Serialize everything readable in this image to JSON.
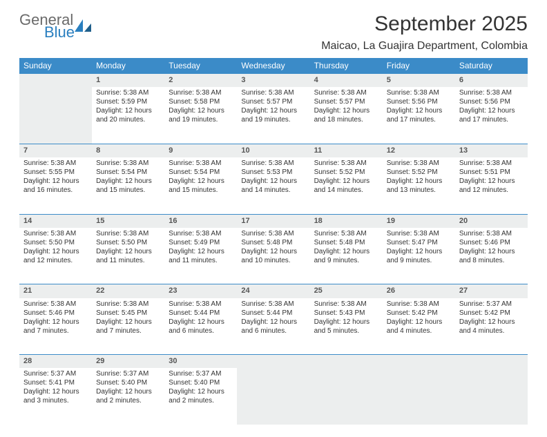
{
  "brand": {
    "general": "General",
    "blue": "Blue"
  },
  "title": "September 2025",
  "location": "Maicao, La Guajira Department, Colombia",
  "colors": {
    "header_bg": "#3b8bc8",
    "header_fg": "#ffffff",
    "daynum_bg": "#eceeee",
    "rule": "#3b8bc8",
    "text": "#333333",
    "logo_gray": "#6a6a6a",
    "logo_blue": "#2a7fbf"
  },
  "weekdays": [
    "Sunday",
    "Monday",
    "Tuesday",
    "Wednesday",
    "Thursday",
    "Friday",
    "Saturday"
  ],
  "weeks": [
    [
      null,
      {
        "n": "1",
        "sr": "Sunrise: 5:38 AM",
        "ss": "Sunset: 5:59 PM",
        "d1": "Daylight: 12 hours",
        "d2": "and 20 minutes."
      },
      {
        "n": "2",
        "sr": "Sunrise: 5:38 AM",
        "ss": "Sunset: 5:58 PM",
        "d1": "Daylight: 12 hours",
        "d2": "and 19 minutes."
      },
      {
        "n": "3",
        "sr": "Sunrise: 5:38 AM",
        "ss": "Sunset: 5:57 PM",
        "d1": "Daylight: 12 hours",
        "d2": "and 19 minutes."
      },
      {
        "n": "4",
        "sr": "Sunrise: 5:38 AM",
        "ss": "Sunset: 5:57 PM",
        "d1": "Daylight: 12 hours",
        "d2": "and 18 minutes."
      },
      {
        "n": "5",
        "sr": "Sunrise: 5:38 AM",
        "ss": "Sunset: 5:56 PM",
        "d1": "Daylight: 12 hours",
        "d2": "and 17 minutes."
      },
      {
        "n": "6",
        "sr": "Sunrise: 5:38 AM",
        "ss": "Sunset: 5:56 PM",
        "d1": "Daylight: 12 hours",
        "d2": "and 17 minutes."
      }
    ],
    [
      {
        "n": "7",
        "sr": "Sunrise: 5:38 AM",
        "ss": "Sunset: 5:55 PM",
        "d1": "Daylight: 12 hours",
        "d2": "and 16 minutes."
      },
      {
        "n": "8",
        "sr": "Sunrise: 5:38 AM",
        "ss": "Sunset: 5:54 PM",
        "d1": "Daylight: 12 hours",
        "d2": "and 15 minutes."
      },
      {
        "n": "9",
        "sr": "Sunrise: 5:38 AM",
        "ss": "Sunset: 5:54 PM",
        "d1": "Daylight: 12 hours",
        "d2": "and 15 minutes."
      },
      {
        "n": "10",
        "sr": "Sunrise: 5:38 AM",
        "ss": "Sunset: 5:53 PM",
        "d1": "Daylight: 12 hours",
        "d2": "and 14 minutes."
      },
      {
        "n": "11",
        "sr": "Sunrise: 5:38 AM",
        "ss": "Sunset: 5:52 PM",
        "d1": "Daylight: 12 hours",
        "d2": "and 14 minutes."
      },
      {
        "n": "12",
        "sr": "Sunrise: 5:38 AM",
        "ss": "Sunset: 5:52 PM",
        "d1": "Daylight: 12 hours",
        "d2": "and 13 minutes."
      },
      {
        "n": "13",
        "sr": "Sunrise: 5:38 AM",
        "ss": "Sunset: 5:51 PM",
        "d1": "Daylight: 12 hours",
        "d2": "and 12 minutes."
      }
    ],
    [
      {
        "n": "14",
        "sr": "Sunrise: 5:38 AM",
        "ss": "Sunset: 5:50 PM",
        "d1": "Daylight: 12 hours",
        "d2": "and 12 minutes."
      },
      {
        "n": "15",
        "sr": "Sunrise: 5:38 AM",
        "ss": "Sunset: 5:50 PM",
        "d1": "Daylight: 12 hours",
        "d2": "and 11 minutes."
      },
      {
        "n": "16",
        "sr": "Sunrise: 5:38 AM",
        "ss": "Sunset: 5:49 PM",
        "d1": "Daylight: 12 hours",
        "d2": "and 11 minutes."
      },
      {
        "n": "17",
        "sr": "Sunrise: 5:38 AM",
        "ss": "Sunset: 5:48 PM",
        "d1": "Daylight: 12 hours",
        "d2": "and 10 minutes."
      },
      {
        "n": "18",
        "sr": "Sunrise: 5:38 AM",
        "ss": "Sunset: 5:48 PM",
        "d1": "Daylight: 12 hours",
        "d2": "and 9 minutes."
      },
      {
        "n": "19",
        "sr": "Sunrise: 5:38 AM",
        "ss": "Sunset: 5:47 PM",
        "d1": "Daylight: 12 hours",
        "d2": "and 9 minutes."
      },
      {
        "n": "20",
        "sr": "Sunrise: 5:38 AM",
        "ss": "Sunset: 5:46 PM",
        "d1": "Daylight: 12 hours",
        "d2": "and 8 minutes."
      }
    ],
    [
      {
        "n": "21",
        "sr": "Sunrise: 5:38 AM",
        "ss": "Sunset: 5:46 PM",
        "d1": "Daylight: 12 hours",
        "d2": "and 7 minutes."
      },
      {
        "n": "22",
        "sr": "Sunrise: 5:38 AM",
        "ss": "Sunset: 5:45 PM",
        "d1": "Daylight: 12 hours",
        "d2": "and 7 minutes."
      },
      {
        "n": "23",
        "sr": "Sunrise: 5:38 AM",
        "ss": "Sunset: 5:44 PM",
        "d1": "Daylight: 12 hours",
        "d2": "and 6 minutes."
      },
      {
        "n": "24",
        "sr": "Sunrise: 5:38 AM",
        "ss": "Sunset: 5:44 PM",
        "d1": "Daylight: 12 hours",
        "d2": "and 6 minutes."
      },
      {
        "n": "25",
        "sr": "Sunrise: 5:38 AM",
        "ss": "Sunset: 5:43 PM",
        "d1": "Daylight: 12 hours",
        "d2": "and 5 minutes."
      },
      {
        "n": "26",
        "sr": "Sunrise: 5:38 AM",
        "ss": "Sunset: 5:42 PM",
        "d1": "Daylight: 12 hours",
        "d2": "and 4 minutes."
      },
      {
        "n": "27",
        "sr": "Sunrise: 5:37 AM",
        "ss": "Sunset: 5:42 PM",
        "d1": "Daylight: 12 hours",
        "d2": "and 4 minutes."
      }
    ],
    [
      {
        "n": "28",
        "sr": "Sunrise: 5:37 AM",
        "ss": "Sunset: 5:41 PM",
        "d1": "Daylight: 12 hours",
        "d2": "and 3 minutes."
      },
      {
        "n": "29",
        "sr": "Sunrise: 5:37 AM",
        "ss": "Sunset: 5:40 PM",
        "d1": "Daylight: 12 hours",
        "d2": "and 2 minutes."
      },
      {
        "n": "30",
        "sr": "Sunrise: 5:37 AM",
        "ss": "Sunset: 5:40 PM",
        "d1": "Daylight: 12 hours",
        "d2": "and 2 minutes."
      },
      null,
      null,
      null,
      null
    ]
  ]
}
